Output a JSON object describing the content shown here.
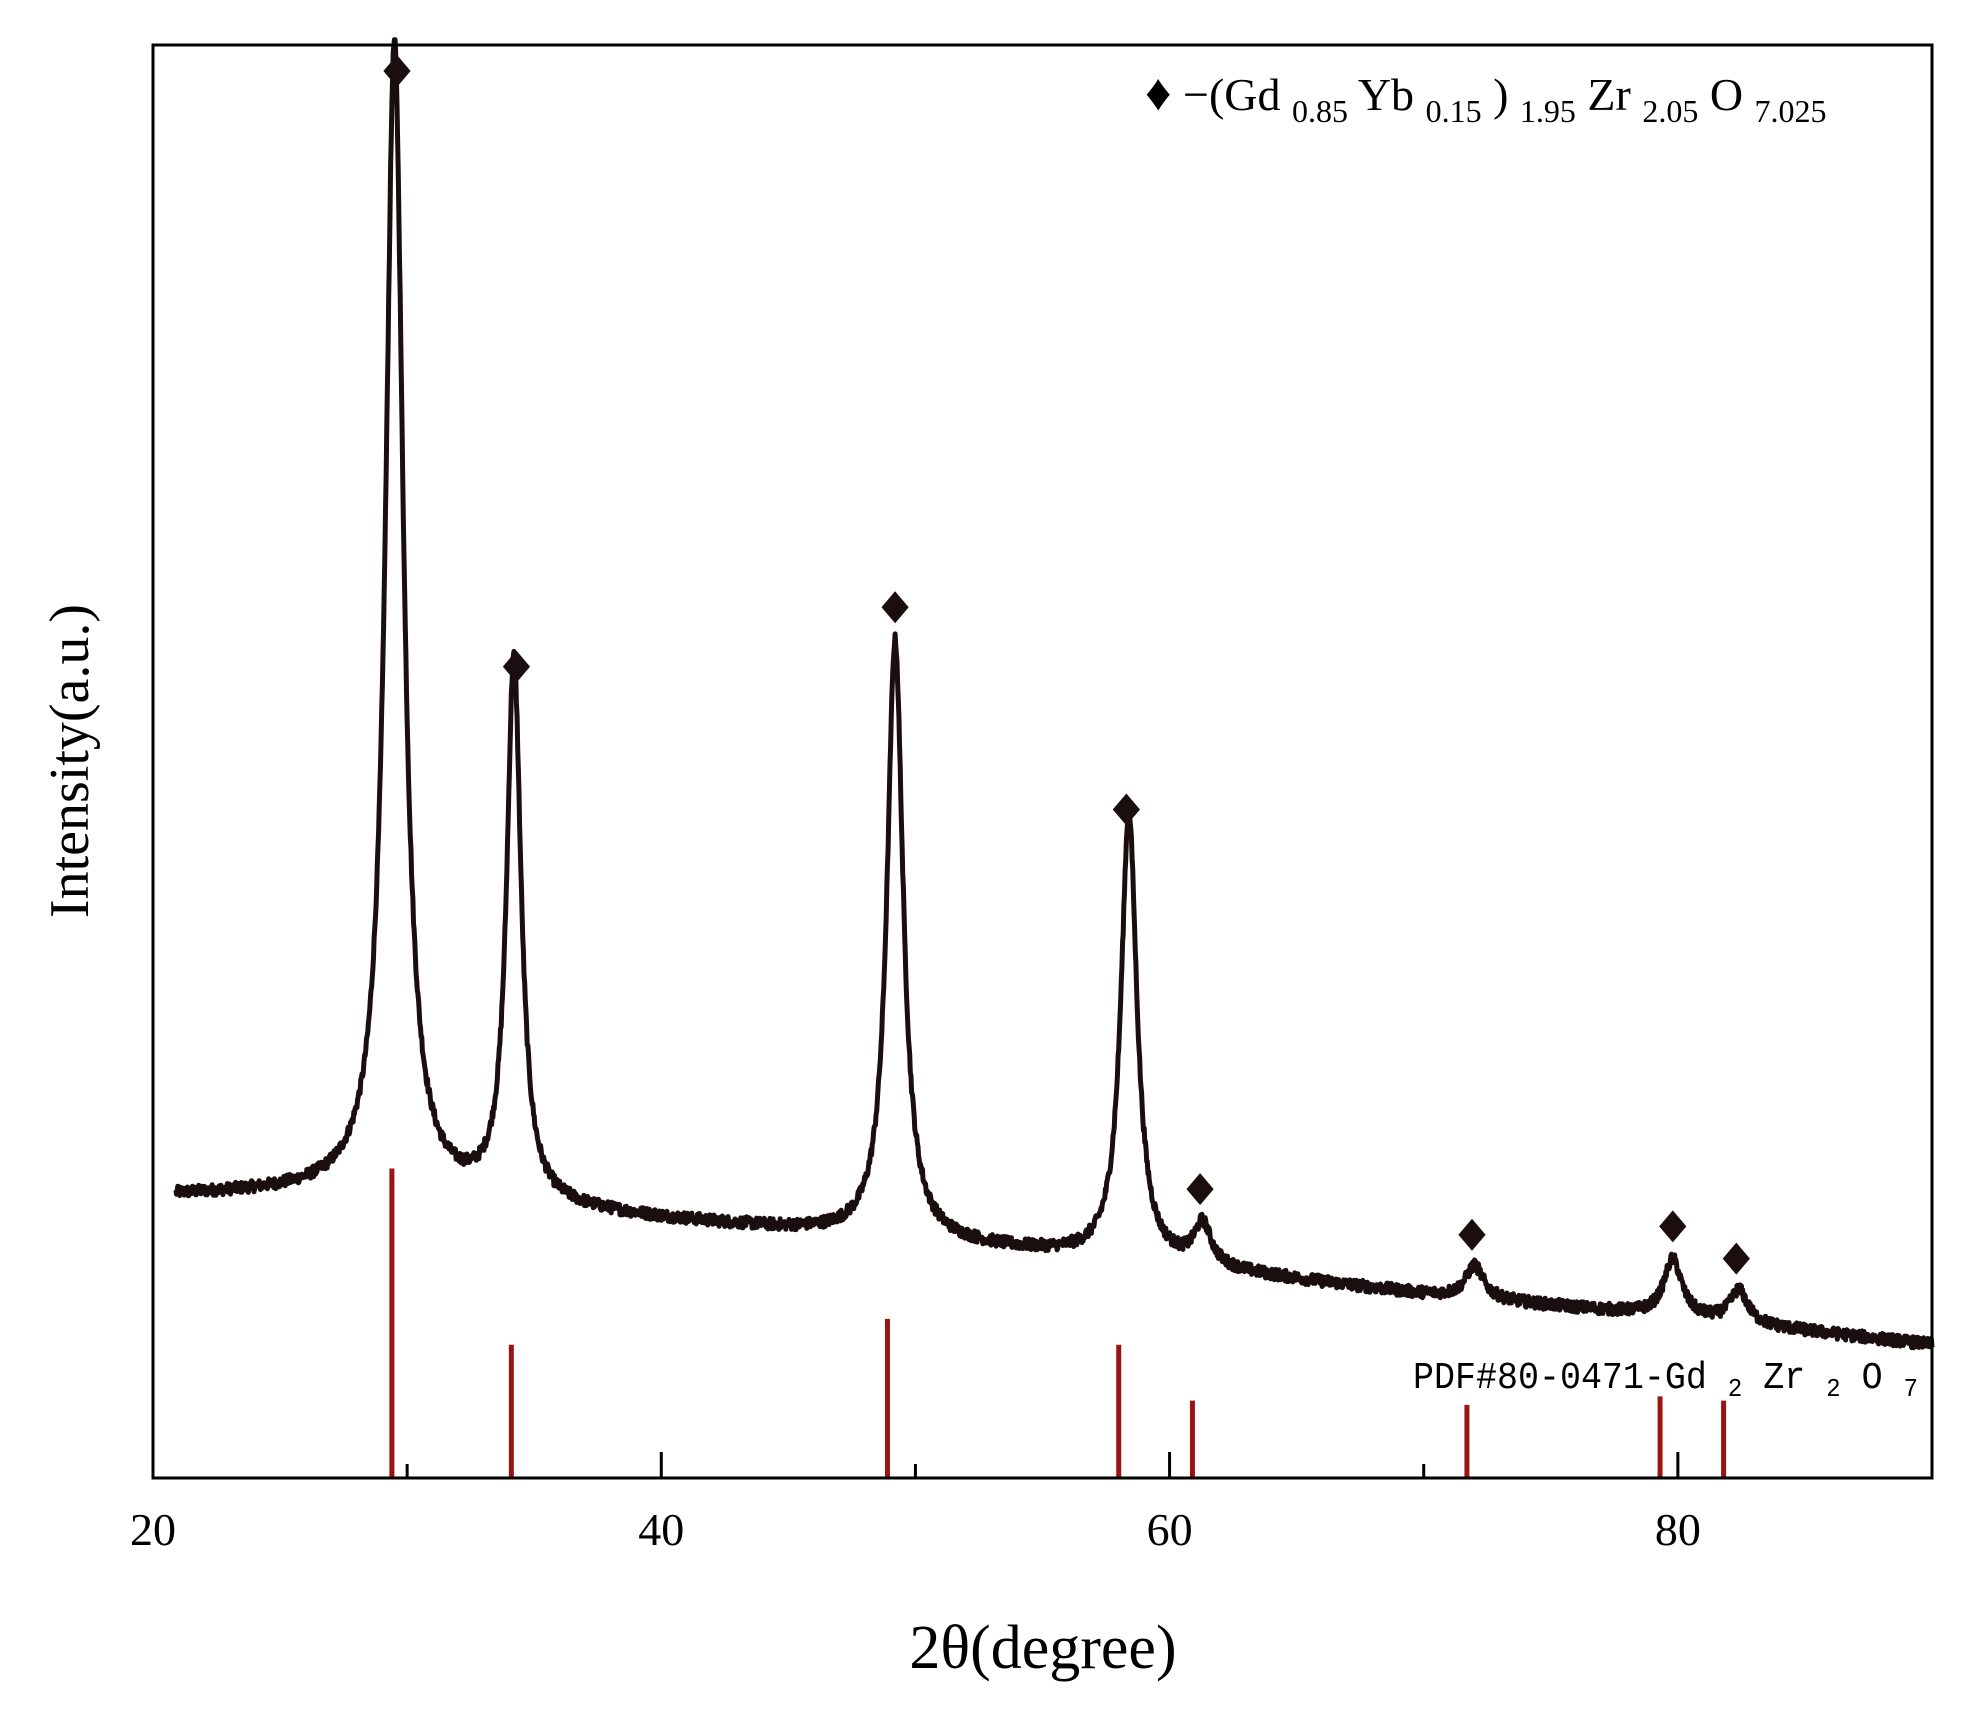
{
  "chart_data": {
    "type": "line",
    "xlabel": "2θ(degree)",
    "ylabel": "Intensity(a.u.)",
    "xlim": [
      20,
      90
    ],
    "x_ticks": [
      20,
      40,
      60,
      80
    ],
    "x_minor_ticks": [
      30,
      50,
      70
    ],
    "grid": false,
    "legend_position": "top-right",
    "legend": {
      "marker": "♦",
      "prefix": "−(Gd",
      "sub1": "0.85",
      "mid1": "Yb",
      "sub2": "0.15",
      "mid2": ")",
      "sub3": "1.95",
      "mid3": "Zr",
      "sub4": "2.05",
      "mid4": "O",
      "sub5": "7.025"
    },
    "reference_label": {
      "prefix": "PDF#80-0471-Gd",
      "sub1": "2",
      "mid1": "Zr",
      "sub2": "2",
      "mid2": "O",
      "sub3": "7"
    },
    "series": [
      {
        "color": "#1a0e0e",
        "background": [
          [
            20,
            0.197
          ],
          [
            28,
            0.2
          ],
          [
            40,
            0.18
          ],
          [
            50,
            0.165
          ],
          [
            60,
            0.148
          ],
          [
            70,
            0.128
          ],
          [
            80,
            0.112
          ],
          [
            90,
            0.093
          ]
        ],
        "peaks": [
          {
            "x": 29.5,
            "height": 0.803,
            "width": 0.42
          },
          {
            "x": 34.2,
            "height": 0.378,
            "width": 0.34
          },
          {
            "x": 49.2,
            "height": 0.418,
            "width": 0.38
          },
          {
            "x": 58.4,
            "height": 0.312,
            "width": 0.38
          },
          {
            "x": 61.3,
            "height": 0.029,
            "width": 0.4
          },
          {
            "x": 72.0,
            "height": 0.023,
            "width": 0.42
          },
          {
            "x": 79.8,
            "height": 0.04,
            "width": 0.42
          },
          {
            "x": 82.4,
            "height": 0.023,
            "width": 0.42
          }
        ]
      }
    ],
    "peak_markers": [
      29.6,
      34.3,
      49.2,
      58.3,
      61.2,
      71.9,
      79.8,
      82.3
    ],
    "reference_lines": {
      "color": "#9b1414",
      "x": [
        29.4,
        34.1,
        48.9,
        58.0,
        60.9,
        71.7,
        79.3,
        81.8
      ],
      "rel": [
        0.216,
        0.093,
        0.111,
        0.093,
        0.054,
        0.051,
        0.057,
        0.054
      ]
    }
  }
}
